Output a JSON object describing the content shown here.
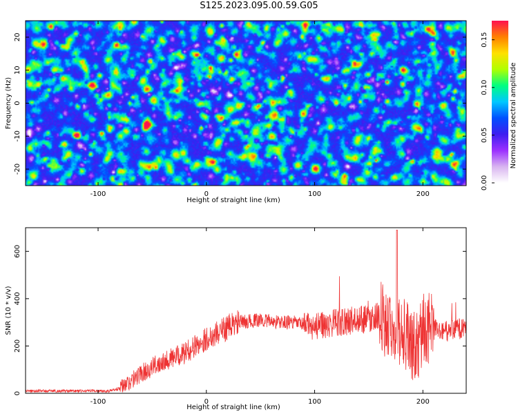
{
  "title": "S125.2023.095.00.59.G05",
  "chart_data": [
    {
      "type": "heatmap",
      "xlabel": "Height of straight line (km)",
      "ylabel": "Frequency (Hz)",
      "xlim": [
        -167,
        240
      ],
      "ylim": [
        -25,
        25
      ],
      "xticks": [
        -100,
        0,
        100,
        200
      ],
      "yticks": [
        -20,
        -10,
        0,
        10,
        20
      ],
      "colorbar": {
        "label": "Normalized spectral amplitude",
        "range": [
          0.0,
          0.17
        ],
        "ticks": [
          "0.00",
          "0.05",
          "0.10",
          "0.15"
        ],
        "colormap": [
          "#ffffff",
          "#d8b4f0",
          "#9b30ff",
          "#3d1ef0",
          "#0050ff",
          "#00c8ff",
          "#00ff80",
          "#b0ff00",
          "#ffe000",
          "#ff8000",
          "#ff1050"
        ]
      },
      "z_range": [
        0.0,
        0.17
      ]
    },
    {
      "type": "line",
      "xlabel": "Height of straight line (km)",
      "ylabel": "SNR (10 * v/v)",
      "xlim": [
        -167,
        240
      ],
      "ylim": [
        0,
        700
      ],
      "xticks": [
        -100,
        0,
        100,
        200
      ],
      "yticks": [
        0,
        200,
        400,
        600
      ],
      "line_color": "#ee3333",
      "series": [
        {
          "x": [
            -167,
            -150,
            -130,
            -110,
            -90,
            -80,
            -70,
            -60,
            -50,
            -40,
            -30,
            -20,
            -10,
            0,
            10,
            20,
            30,
            40,
            50,
            60,
            70,
            80,
            90,
            100,
            110,
            120,
            130,
            140,
            150,
            160,
            170,
            175,
            180,
            185,
            190,
            195,
            200,
            210,
            220,
            230,
            240
          ],
          "y": [
            10,
            10,
            10,
            10,
            10,
            20,
            50,
            85,
            110,
            140,
            150,
            170,
            200,
            230,
            255,
            280,
            300,
            305,
            310,
            305,
            300,
            300,
            290,
            280,
            290,
            300,
            305,
            310,
            315,
            330,
            300,
            290,
            260,
            240,
            200,
            190,
            280,
            270,
            260,
            270,
            275
          ]
        }
      ]
    }
  ]
}
